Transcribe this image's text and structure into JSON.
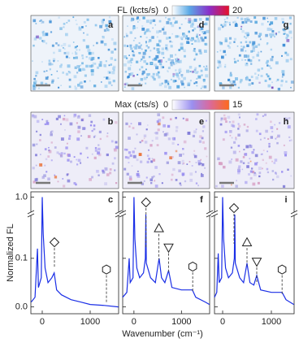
{
  "colorbars": [
    {
      "label": "FL (kcts/s)",
      "min": 0,
      "max": 20
    },
    {
      "label": "Max (cts/s)",
      "min": 0,
      "max": 15
    }
  ],
  "images": [
    {
      "label": "a"
    },
    {
      "label": "d"
    },
    {
      "label": "g"
    },
    {
      "label": "b"
    },
    {
      "label": "e"
    },
    {
      "label": "h"
    }
  ],
  "chart_data": [
    {
      "type": "line",
      "panel": "c",
      "ylabel": "Normalized FL",
      "color": "#1a2ee6",
      "x": [
        -230,
        -150,
        -100,
        -80,
        -20,
        0,
        20,
        60,
        120,
        200,
        250,
        300,
        400,
        600,
        800,
        1000,
        1300,
        1590
      ],
      "values": [
        0.01,
        0.02,
        0.12,
        0.04,
        0.06,
        1.0,
        0.15,
        0.08,
        0.05,
        0.06,
        0.07,
        0.035,
        0.025,
        0.015,
        0.01,
        0.005,
        0.003,
        0.0
      ],
      "xlim": [
        -237,
        1593
      ],
      "xticks": [
        0,
        1000
      ],
      "ylim": [
        -0.014,
        1.01
      ],
      "ybreak": [
        0.19,
        0.97
      ],
      "yticks": [
        {
          "value": 0,
          "label": "0.0"
        },
        {
          "value": 0.1,
          "label": "0.1"
        },
        {
          "value": 1,
          "label": "1.0"
        }
      ],
      "markers": [
        {
          "shape": "diamond",
          "x": 254,
          "y": 0.133,
          "y_end": 0.08
        },
        {
          "shape": "hexagon",
          "x": 1339,
          "y": 0.077,
          "y_end": 0.01
        }
      ]
    },
    {
      "type": "line",
      "panel": "f",
      "xlabel": "Wavenumber (cm⁻¹)",
      "color": "#1a2ee6",
      "x": [
        -237,
        -150,
        -100,
        -80,
        -20,
        0,
        20,
        60,
        120,
        200,
        240,
        250,
        260,
        350,
        450,
        530,
        580,
        650,
        730,
        800,
        1000,
        1230,
        1300,
        1500,
        1590
      ],
      "values": [
        0.02,
        0.03,
        0.1,
        0.05,
        0.06,
        1.0,
        0.14,
        0.08,
        0.06,
        0.07,
        0.1,
        0.19,
        0.09,
        0.06,
        0.05,
        0.1,
        0.06,
        0.05,
        0.075,
        0.04,
        0.035,
        0.035,
        0.02,
        0.01,
        0.005
      ],
      "xlim": [
        -237,
        1593
      ],
      "xticks": [
        0,
        1000
      ],
      "ylim": [
        -0.014,
        1.01
      ],
      "ybreak": [
        0.19,
        0.97
      ],
      "markers": [
        {
          "shape": "diamond",
          "x": 254,
          "y": 0.99,
          "y_end": 0.12
        },
        {
          "shape": "triangle",
          "x": 525,
          "y": 0.162,
          "y_end": 0.097
        },
        {
          "shape": "triangle-down",
          "x": 729,
          "y": 0.122,
          "y_end": 0.072
        },
        {
          "shape": "hexagon",
          "x": 1237,
          "y": 0.083,
          "y_end": 0.03
        }
      ]
    },
    {
      "type": "line",
      "panel": "i",
      "color": "#1a2ee6",
      "x": [
        -167,
        -120,
        -90,
        -70,
        -20,
        0,
        20,
        60,
        120,
        200,
        240,
        250,
        260,
        350,
        430,
        500,
        560,
        640,
        700,
        780,
        1000,
        1220,
        1300,
        1460
      ],
      "values": [
        0.02,
        0.03,
        0.11,
        0.05,
        0.06,
        1.0,
        0.14,
        0.08,
        0.06,
        0.07,
        0.1,
        0.19,
        0.09,
        0.06,
        0.05,
        0.09,
        0.05,
        0.045,
        0.065,
        0.035,
        0.03,
        0.03,
        0.015,
        0.005
      ],
      "xlim": [
        -167,
        1467
      ],
      "xticks": [
        0,
        1000
      ],
      "ylim": [
        -0.014,
        1.01
      ],
      "ybreak": [
        0.19,
        0.97
      ],
      "markers": [
        {
          "shape": "diamond",
          "x": 233,
          "y": 0.979,
          "y_end": 0.13
        },
        {
          "shape": "triangle",
          "x": 500,
          "y": 0.133,
          "y_end": 0.085
        },
        {
          "shape": "triangle-down",
          "x": 700,
          "y": 0.093,
          "y_end": 0.047
        },
        {
          "shape": "hexagon",
          "x": 1220,
          "y": 0.077,
          "y_end": 0.027
        }
      ]
    }
  ]
}
